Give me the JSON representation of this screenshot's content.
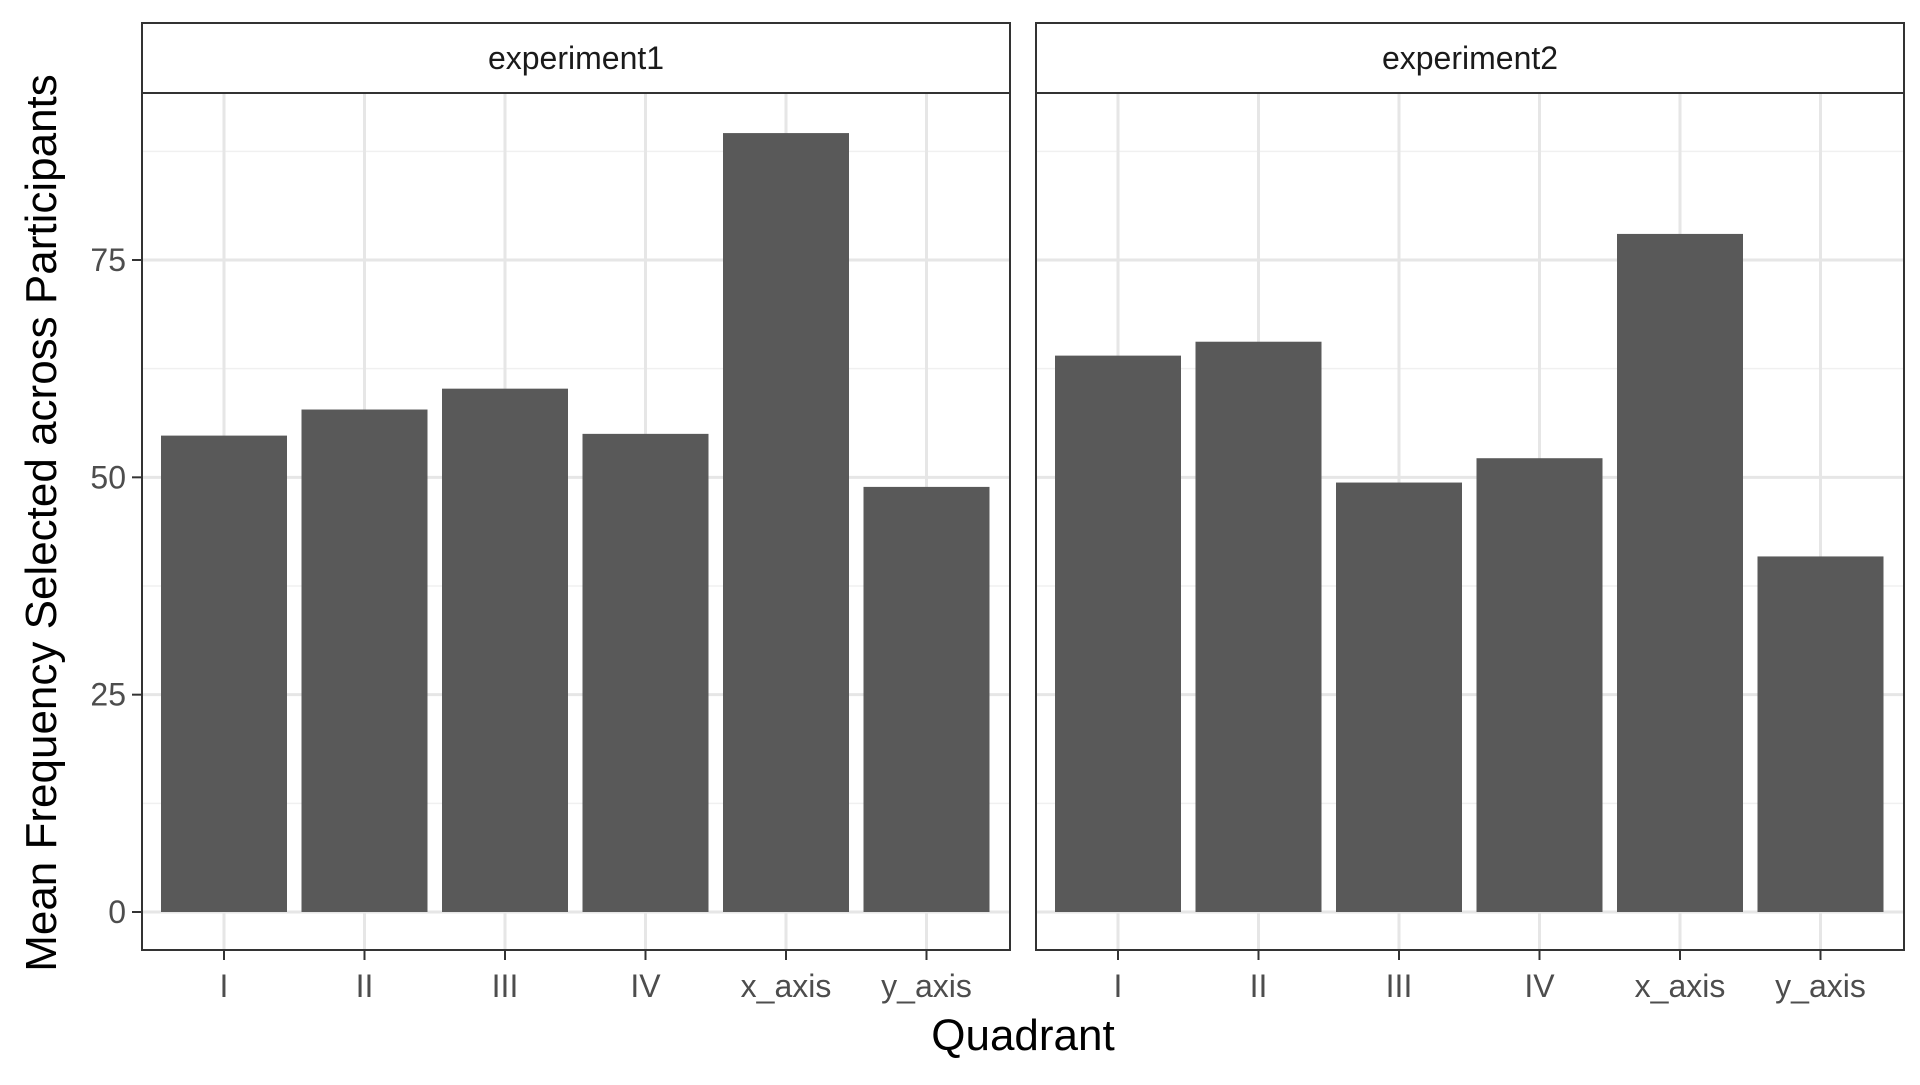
{
  "chart_data": {
    "type": "bar",
    "xlabel": "Quadrant",
    "ylabel": "Mean Frequency Selected across Participants",
    "ylim": [
      0,
      95
    ],
    "y_ticks": [
      0,
      25,
      50,
      75
    ],
    "y_tick_labels": [
      "0",
      "25",
      "50",
      "75"
    ],
    "categories": [
      "I",
      "II",
      "III",
      "IV",
      "x_axis",
      "y_axis"
    ],
    "grid": true,
    "bar_color": "#595959",
    "facets": [
      {
        "name": "experiment1",
        "values": [
          54.8,
          57.8,
          60.2,
          55.0,
          89.6,
          48.9
        ]
      },
      {
        "name": "experiment2",
        "values": [
          64.0,
          65.6,
          49.4,
          52.2,
          78.0,
          40.9
        ]
      }
    ]
  }
}
